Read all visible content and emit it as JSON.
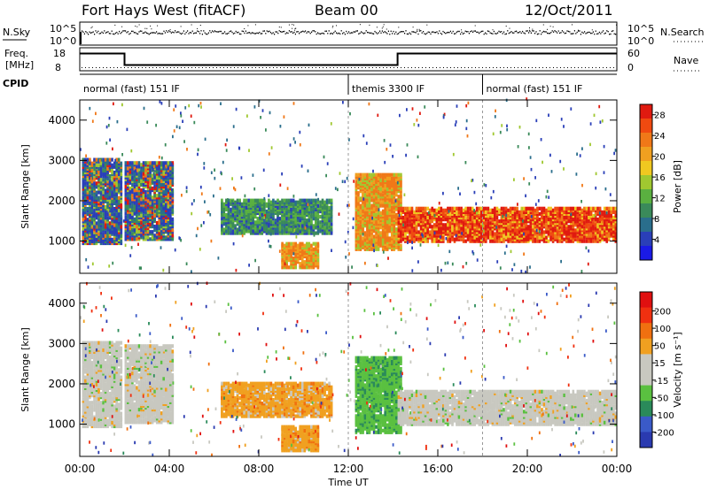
{
  "header": {
    "title": "Fort Hays West (fitACF)",
    "beam": "Beam 00",
    "date": "12/Oct/2011"
  },
  "strips": {
    "nsky_label": "N.Sky",
    "nsky_ticks": [
      "10^5",
      "10^0"
    ],
    "nsearch_label": "N.Search",
    "nsearch_ticks": [
      "10^5",
      "10^0"
    ],
    "freq_label": "Freq.",
    "freq_unit": "[MHz]",
    "freq_ticks": [
      "18",
      "8"
    ],
    "nave_label": "Nave",
    "nave_ticks": [
      "60",
      "0"
    ],
    "cpid_label": "CPID",
    "modes": [
      {
        "label": "normal (fast) 151 IF",
        "start": 0
      },
      {
        "label": "themis 3300 IF",
        "start": 12
      },
      {
        "label": "normal (fast) 151 IF",
        "start": 18
      }
    ],
    "freq_profile": [
      {
        "start": 0,
        "end": 2,
        "freq": 15.5
      },
      {
        "start": 2,
        "end": 14.2,
        "freq": 10.5
      },
      {
        "start": 14.2,
        "end": 24,
        "freq": 15.5
      }
    ]
  },
  "chart_data": [
    {
      "type": "heatmap",
      "name": "power",
      "ylabel": "Slant Range [km]",
      "xlabel": "Time UT",
      "xlim": [
        0,
        24
      ],
      "ylim": [
        200,
        4500
      ],
      "yticks": [
        "1000",
        "2000",
        "3000",
        "4000"
      ],
      "xticks": [
        "00:00",
        "04:00",
        "08:00",
        "12:00",
        "16:00",
        "20:00",
        "00:00"
      ],
      "colorbar": {
        "label": "Power [dB]",
        "ticks": [
          "4",
          "8",
          "12",
          "16",
          "20",
          "24",
          "28"
        ],
        "colors": [
          "#1a1ae6",
          "#2a3fb8",
          "#2a6e8c",
          "#3a8a5a",
          "#5ab040",
          "#a0c830",
          "#f0c820",
          "#f0a020",
          "#f07818",
          "#f04a10",
          "#e01a10"
        ],
        "range": [
          0,
          30
        ]
      }
    },
    {
      "type": "heatmap",
      "name": "velocity",
      "ylabel": "Slant Range [km]",
      "xlabel": "Time UT",
      "xlim": [
        0,
        24
      ],
      "ylim": [
        200,
        4500
      ],
      "yticks": [
        "1000",
        "2000",
        "3000",
        "4000"
      ],
      "xticks": [
        "00:00",
        "04:00",
        "08:00",
        "12:00",
        "16:00",
        "20:00",
        "00:00"
      ],
      "colorbar": {
        "label": "Velocity [m s⁻¹]",
        "ticks": [
          "200",
          "100",
          "50",
          "15",
          "-15",
          "-50",
          "-100",
          "-200"
        ],
        "colors": [
          "#2a3ab0",
          "#3a5ac8",
          "#2a8a5a",
          "#5ac040",
          "#c8c8c0",
          "#c8c8c0",
          "#f0a020",
          "#f07010",
          "#f03010",
          "#e01010"
        ]
      }
    }
  ],
  "regions": [
    {
      "t0": 0.1,
      "t1": 1.9,
      "r0": 900,
      "r1": 3000,
      "power": "mixed",
      "vel": "grey"
    },
    {
      "t0": 2.0,
      "t1": 4.2,
      "r0": 1000,
      "r1": 2900,
      "power": "mixed",
      "vel": "grey"
    },
    {
      "t0": 6.3,
      "t1": 11.2,
      "r0": 1150,
      "r1": 2000,
      "power": "green",
      "vel": "orange"
    },
    {
      "t0": 9.0,
      "t1": 10.6,
      "r0": 300,
      "r1": 900,
      "power": "orange",
      "vel": "orange"
    },
    {
      "t0": 12.3,
      "t1": 14.3,
      "r0": 750,
      "r1": 2600,
      "power": "orange",
      "vel": "green"
    },
    {
      "t0": 14.2,
      "t1": 24.0,
      "r0": 950,
      "r1": 1800,
      "power": "strong",
      "vel": "grey"
    }
  ]
}
